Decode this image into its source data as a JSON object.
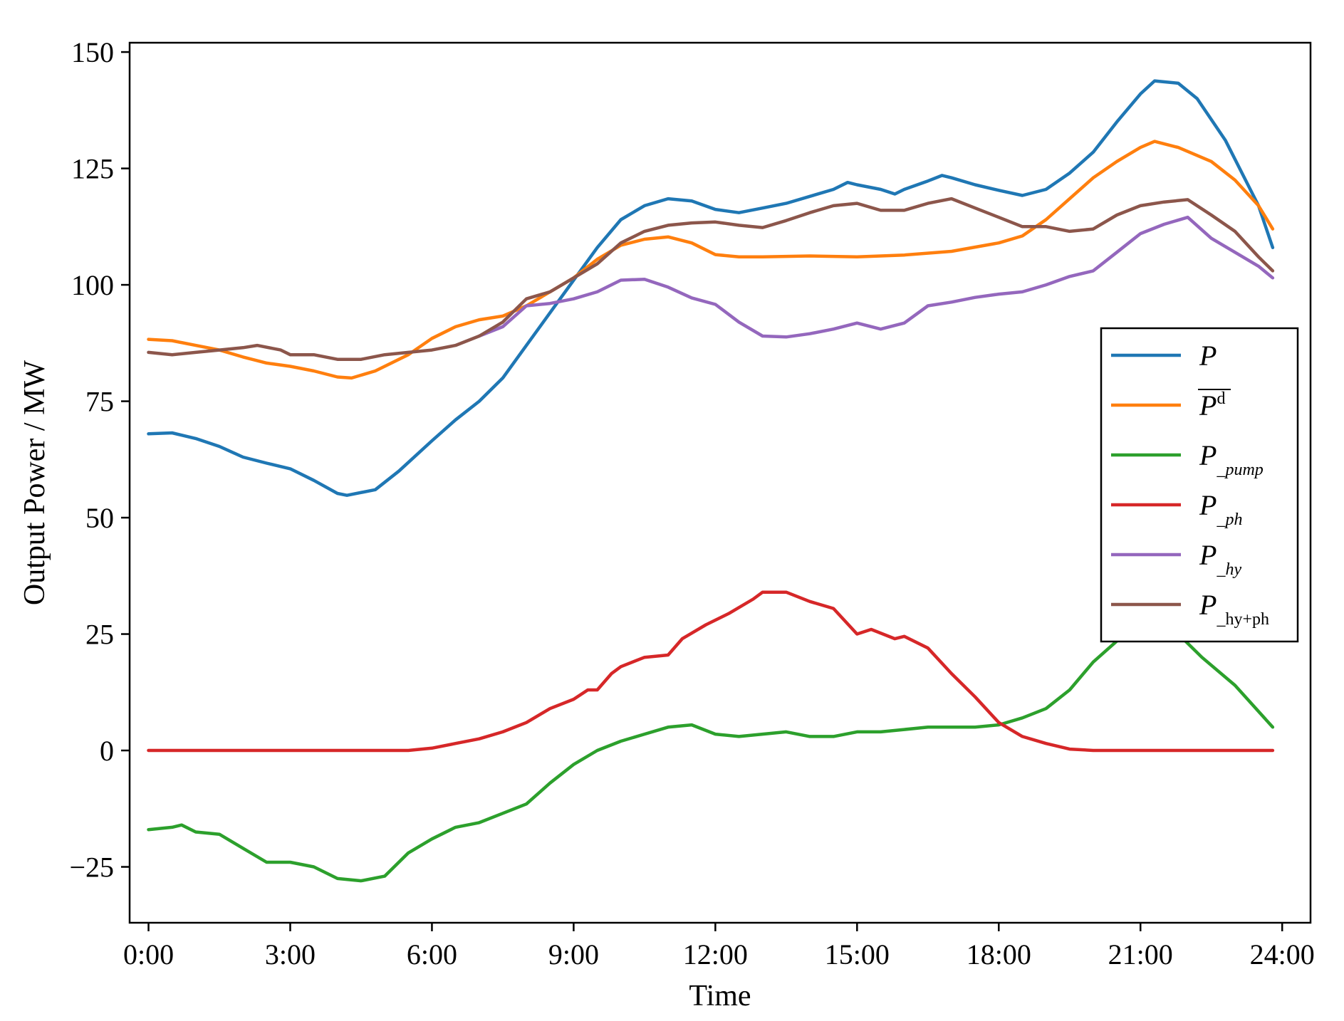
{
  "chart_data": {
    "type": "line",
    "xlabel": "Time",
    "ylabel": "Output Power / MW",
    "xlim": [
      -0.4,
      24.6
    ],
    "ylim": [
      -37,
      152
    ],
    "xticks": [
      0,
      3,
      6,
      9,
      12,
      15,
      18,
      21,
      24
    ],
    "xtick_labels": [
      "0:00",
      "3:00",
      "6:00",
      "9:00",
      "12:00",
      "15:00",
      "18:00",
      "21:00",
      "24:00"
    ],
    "yticks": [
      -25,
      0,
      25,
      50,
      75,
      100,
      125,
      150
    ],
    "ytick_labels": [
      "−25",
      "0",
      "25",
      "50",
      "75",
      "100",
      "125",
      "150"
    ],
    "legend_position": "right",
    "grid": false,
    "series": [
      {
        "name": "P",
        "sub": "",
        "overline": false,
        "color": "#1f77b4",
        "points": [
          [
            0,
            68
          ],
          [
            0.5,
            68.2
          ],
          [
            1,
            67
          ],
          [
            1.5,
            65.3
          ],
          [
            2,
            63
          ],
          [
            2.5,
            61.7
          ],
          [
            3,
            60.5
          ],
          [
            3.5,
            58
          ],
          [
            4,
            55.2
          ],
          [
            4.2,
            54.8
          ],
          [
            4.8,
            56
          ],
          [
            5.3,
            60
          ],
          [
            6,
            66.5
          ],
          [
            6.5,
            71
          ],
          [
            7,
            75
          ],
          [
            7.5,
            80
          ],
          [
            8,
            87
          ],
          [
            8.5,
            94
          ],
          [
            9,
            101
          ],
          [
            9.5,
            108
          ],
          [
            10,
            114
          ],
          [
            10.5,
            117
          ],
          [
            11,
            118.5
          ],
          [
            11.5,
            118
          ],
          [
            12,
            116.2
          ],
          [
            12.5,
            115.5
          ],
          [
            13,
            116.5
          ],
          [
            13.5,
            117.5
          ],
          [
            14,
            119
          ],
          [
            14.5,
            120.5
          ],
          [
            14.8,
            122
          ],
          [
            15,
            121.5
          ],
          [
            15.5,
            120.5
          ],
          [
            15.8,
            119.5
          ],
          [
            16,
            120.5
          ],
          [
            16.5,
            122.3
          ],
          [
            16.8,
            123.5
          ],
          [
            17,
            123
          ],
          [
            17.5,
            121.5
          ],
          [
            18,
            120.3
          ],
          [
            18.5,
            119.2
          ],
          [
            19,
            120.5
          ],
          [
            19.5,
            124
          ],
          [
            20,
            128.5
          ],
          [
            20.5,
            135
          ],
          [
            21,
            141
          ],
          [
            21.3,
            143.8
          ],
          [
            21.8,
            143.3
          ],
          [
            22.2,
            140
          ],
          [
            22.8,
            131
          ],
          [
            23.5,
            117
          ],
          [
            23.8,
            108
          ]
        ]
      },
      {
        "name": "P",
        "sub": "d",
        "overline": true,
        "color": "#ff7f0e",
        "points": [
          [
            0,
            88.3
          ],
          [
            0.5,
            88
          ],
          [
            1,
            87
          ],
          [
            1.5,
            86
          ],
          [
            2,
            84.5
          ],
          [
            2.5,
            83.2
          ],
          [
            3,
            82.5
          ],
          [
            3.5,
            81.5
          ],
          [
            4,
            80.2
          ],
          [
            4.3,
            80
          ],
          [
            4.8,
            81.5
          ],
          [
            5.5,
            85
          ],
          [
            6,
            88.5
          ],
          [
            6.5,
            91
          ],
          [
            7,
            92.5
          ],
          [
            7.5,
            93.3
          ],
          [
            8,
            95.5
          ],
          [
            8.5,
            98.5
          ],
          [
            9,
            101.5
          ],
          [
            9.5,
            105.5
          ],
          [
            10,
            108.5
          ],
          [
            10.5,
            109.8
          ],
          [
            11,
            110.3
          ],
          [
            11.5,
            109
          ],
          [
            12,
            106.5
          ],
          [
            12.5,
            106
          ],
          [
            13,
            106
          ],
          [
            14,
            106.2
          ],
          [
            15,
            106
          ],
          [
            16,
            106.4
          ],
          [
            17,
            107.2
          ],
          [
            18,
            109
          ],
          [
            18.5,
            110.5
          ],
          [
            19,
            114
          ],
          [
            19.5,
            118.5
          ],
          [
            20,
            123
          ],
          [
            20.5,
            126.5
          ],
          [
            21,
            129.5
          ],
          [
            21.3,
            130.8
          ],
          [
            21.8,
            129.5
          ],
          [
            22.5,
            126.5
          ],
          [
            23,
            122.5
          ],
          [
            23.5,
            117
          ],
          [
            23.8,
            112
          ]
        ]
      },
      {
        "name": "P",
        "sub": "_pump",
        "overline": false,
        "color": "#2ca02c",
        "points": [
          [
            0,
            -17
          ],
          [
            0.5,
            -16.5
          ],
          [
            0.7,
            -16
          ],
          [
            1,
            -17.5
          ],
          [
            1.5,
            -18
          ],
          [
            2,
            -21
          ],
          [
            2.5,
            -24
          ],
          [
            3,
            -24
          ],
          [
            3.5,
            -25
          ],
          [
            4,
            -27.5
          ],
          [
            4.5,
            -28
          ],
          [
            5,
            -27
          ],
          [
            5.5,
            -22
          ],
          [
            6,
            -19
          ],
          [
            6.5,
            -16.5
          ],
          [
            7,
            -15.5
          ],
          [
            7.5,
            -13.5
          ],
          [
            8,
            -11.5
          ],
          [
            8.5,
            -7
          ],
          [
            9,
            -3
          ],
          [
            9.5,
            0
          ],
          [
            10,
            2
          ],
          [
            10.5,
            3.5
          ],
          [
            11,
            5
          ],
          [
            11.5,
            5.5
          ],
          [
            12,
            3.5
          ],
          [
            12.5,
            3
          ],
          [
            13,
            3.5
          ],
          [
            13.5,
            4
          ],
          [
            14,
            3
          ],
          [
            14.5,
            3
          ],
          [
            15,
            4
          ],
          [
            15.5,
            4
          ],
          [
            16,
            4.5
          ],
          [
            16.5,
            5
          ],
          [
            17,
            5
          ],
          [
            17.5,
            5
          ],
          [
            18,
            5.5
          ],
          [
            18.5,
            7
          ],
          [
            19,
            9
          ],
          [
            19.5,
            13
          ],
          [
            20,
            19
          ],
          [
            20.5,
            23.5
          ],
          [
            21,
            26.5
          ],
          [
            21.3,
            26.8
          ],
          [
            21.8,
            25
          ],
          [
            22.3,
            20
          ],
          [
            23,
            14
          ],
          [
            23.8,
            5
          ]
        ]
      },
      {
        "name": "P",
        "sub": "_ph",
        "overline": false,
        "color": "#d62728",
        "points": [
          [
            0,
            0
          ],
          [
            5.5,
            0
          ],
          [
            6,
            0.5
          ],
          [
            6.5,
            1.5
          ],
          [
            7,
            2.5
          ],
          [
            7.5,
            4
          ],
          [
            8,
            6
          ],
          [
            8.5,
            9
          ],
          [
            9,
            11
          ],
          [
            9.3,
            13
          ],
          [
            9.5,
            13
          ],
          [
            9.8,
            16.5
          ],
          [
            10,
            18
          ],
          [
            10.5,
            20
          ],
          [
            11,
            20.5
          ],
          [
            11.3,
            24
          ],
          [
            11.8,
            27
          ],
          [
            12.3,
            29.5
          ],
          [
            12.8,
            32.5
          ],
          [
            13,
            34
          ],
          [
            13.5,
            34
          ],
          [
            14,
            32
          ],
          [
            14.5,
            30.5
          ],
          [
            15,
            25
          ],
          [
            15.3,
            26
          ],
          [
            15.8,
            24
          ],
          [
            16,
            24.5
          ],
          [
            16.5,
            22
          ],
          [
            17,
            16.5
          ],
          [
            17.5,
            11.5
          ],
          [
            18,
            6
          ],
          [
            18.5,
            3
          ],
          [
            19,
            1.5
          ],
          [
            19.5,
            0.3
          ],
          [
            20,
            0
          ],
          [
            23.8,
            0
          ]
        ]
      },
      {
        "name": "P",
        "sub": "_hy",
        "overline": false,
        "color": "#9467bd",
        "points": [
          [
            7,
            89
          ],
          [
            7.5,
            91
          ],
          [
            8,
            95.5
          ],
          [
            8.5,
            96
          ],
          [
            9,
            97
          ],
          [
            9.5,
            98.5
          ],
          [
            10,
            101
          ],
          [
            10.5,
            101.2
          ],
          [
            11,
            99.5
          ],
          [
            11.5,
            97.2
          ],
          [
            12,
            95.8
          ],
          [
            12.5,
            92
          ],
          [
            13,
            89
          ],
          [
            13.5,
            88.8
          ],
          [
            14,
            89.5
          ],
          [
            14.5,
            90.5
          ],
          [
            15,
            91.8
          ],
          [
            15.5,
            90.5
          ],
          [
            16,
            91.8
          ],
          [
            16.5,
            95.5
          ],
          [
            17,
            96.3
          ],
          [
            17.5,
            97.3
          ],
          [
            18,
            98
          ],
          [
            18.5,
            98.5
          ],
          [
            19,
            100
          ],
          [
            19.5,
            101.8
          ],
          [
            20,
            103
          ],
          [
            20.5,
            107
          ],
          [
            21,
            111
          ],
          [
            21.5,
            113
          ],
          [
            22,
            114.5
          ],
          [
            22.5,
            110
          ],
          [
            23,
            107
          ],
          [
            23.5,
            104
          ],
          [
            23.8,
            101.5
          ]
        ]
      },
      {
        "name": "P",
        "sub": "_hy+ph",
        "overline": false,
        "color": "#8c564b",
        "points": [
          [
            0,
            85.5
          ],
          [
            0.5,
            85
          ],
          [
            1,
            85.5
          ],
          [
            1.5,
            86
          ],
          [
            2,
            86.5
          ],
          [
            2.3,
            87
          ],
          [
            2.8,
            86
          ],
          [
            3,
            85
          ],
          [
            3.5,
            85
          ],
          [
            4,
            84
          ],
          [
            4.5,
            84
          ],
          [
            5,
            85
          ],
          [
            5.5,
            85.5
          ],
          [
            6,
            86
          ],
          [
            6.5,
            87
          ],
          [
            7,
            89
          ],
          [
            7.5,
            92
          ],
          [
            8,
            97
          ],
          [
            8.5,
            98.5
          ],
          [
            9,
            101.5
          ],
          [
            9.5,
            104.5
          ],
          [
            10,
            109
          ],
          [
            10.5,
            111.5
          ],
          [
            11,
            112.8
          ],
          [
            11.5,
            113.3
          ],
          [
            12,
            113.5
          ],
          [
            12.5,
            112.8
          ],
          [
            13,
            112.3
          ],
          [
            13.5,
            113.8
          ],
          [
            14,
            115.5
          ],
          [
            14.5,
            117
          ],
          [
            15,
            117.5
          ],
          [
            15.5,
            116
          ],
          [
            16,
            116
          ],
          [
            16.5,
            117.5
          ],
          [
            17,
            118.5
          ],
          [
            17.5,
            116.5
          ],
          [
            18,
            114.5
          ],
          [
            18.5,
            112.5
          ],
          [
            19,
            112.5
          ],
          [
            19.5,
            111.5
          ],
          [
            20,
            112
          ],
          [
            20.5,
            115
          ],
          [
            21,
            117
          ],
          [
            21.5,
            117.8
          ],
          [
            22,
            118.3
          ],
          [
            22.5,
            115
          ],
          [
            23,
            111.5
          ],
          [
            23.5,
            106
          ],
          [
            23.8,
            103
          ]
        ]
      }
    ]
  }
}
